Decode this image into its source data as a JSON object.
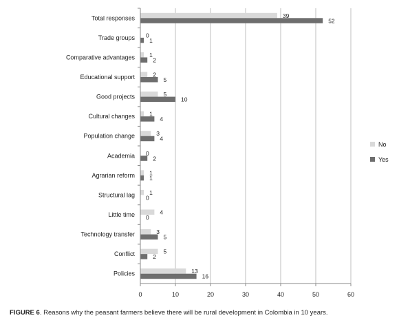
{
  "caption": {
    "label": "FIGURE 6",
    "text": ". Reasons why the peasant farmers believe there will be rural development in Colombia in 10 years."
  },
  "chart_data": {
    "type": "bar",
    "orientation": "horizontal",
    "categories": [
      "Total responses",
      "Trade groups",
      "Comparative advantages",
      "Educational support",
      "Good projects",
      "Cultural changes",
      "Population change",
      "Academia",
      "Agrarian reform",
      "Structural lag",
      "Little time",
      "Technology transfer",
      "Conflict",
      "Policies"
    ],
    "series": [
      {
        "name": "No",
        "color": "#d9d9d9",
        "values": [
          39,
          0,
          1,
          2,
          5,
          1,
          3,
          0,
          1,
          1,
          4,
          3,
          5,
          13
        ]
      },
      {
        "name": "Yes",
        "color": "#6e6e6e",
        "values": [
          52,
          1,
          2,
          5,
          10,
          4,
          4,
          2,
          1,
          0,
          0,
          5,
          2,
          16
        ]
      }
    ],
    "xlim": [
      0,
      60
    ],
    "xticks": [
      "0",
      "10",
      "20",
      "30",
      "40",
      "50",
      "60"
    ],
    "grid": true,
    "legend_position": "right"
  }
}
